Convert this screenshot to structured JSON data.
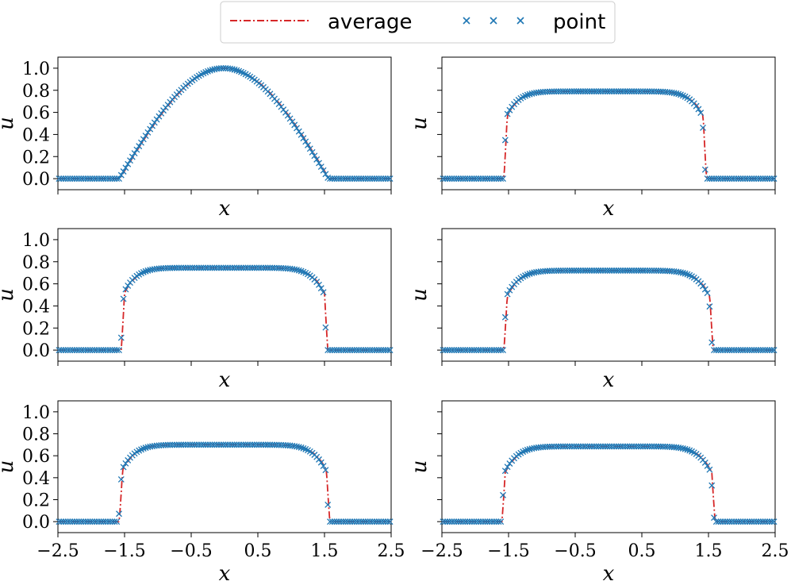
{
  "legend": {
    "items": [
      {
        "label": "average",
        "color": "#d62728",
        "style": "dash-dot"
      },
      {
        "label": "point",
        "color": "#1f77b4",
        "style": "x-marker"
      }
    ]
  },
  "chart_data": [
    {
      "type": "line",
      "xlabel": "x",
      "ylabel": "u",
      "xlim": [
        -2.5,
        2.5
      ],
      "ylim": [
        -0.1,
        1.1
      ],
      "yticks": [
        "0.0",
        "0.2",
        "0.4",
        "0.6",
        "0.8",
        "1.0"
      ],
      "profile": {
        "kind": "cosine",
        "peak": 1.0,
        "left_edge": -1.57,
        "right_edge": 1.57
      },
      "series": [
        {
          "name": "average"
        },
        {
          "name": "point"
        }
      ]
    },
    {
      "type": "line",
      "xlabel": "x",
      "ylabel": "u",
      "xlim": [
        -2.5,
        2.5
      ],
      "ylim": [
        -0.1,
        1.1
      ],
      "profile": {
        "kind": "plateau",
        "peak": 0.79,
        "left_edge": -1.57,
        "right_edge": 1.47,
        "edge_value": 0.5
      },
      "series": [
        {
          "name": "average"
        },
        {
          "name": "point"
        }
      ]
    },
    {
      "type": "line",
      "xlabel": "x",
      "ylabel": "u",
      "xlim": [
        -2.5,
        2.5
      ],
      "ylim": [
        -0.1,
        1.1
      ],
      "yticks": [
        "0.0",
        "0.2",
        "0.4",
        "0.6",
        "0.8",
        "1.0"
      ],
      "profile": {
        "kind": "plateau",
        "peak": 0.745,
        "left_edge": -1.55,
        "right_edge": 1.55,
        "edge_value": 0.45
      },
      "series": [
        {
          "name": "average"
        },
        {
          "name": "point"
        }
      ]
    },
    {
      "type": "line",
      "xlabel": "x",
      "ylabel": "u",
      "xlim": [
        -2.5,
        2.5
      ],
      "ylim": [
        -0.1,
        1.1
      ],
      "profile": {
        "kind": "plateau",
        "peak": 0.72,
        "left_edge": -1.57,
        "right_edge": 1.57,
        "edge_value": 0.42
      },
      "series": [
        {
          "name": "average"
        },
        {
          "name": "point"
        }
      ]
    },
    {
      "type": "line",
      "xlabel": "x",
      "ylabel": "u",
      "xlim": [
        -2.5,
        2.5
      ],
      "ylim": [
        -0.1,
        1.1
      ],
      "yticks": [
        "0.0",
        "0.2",
        "0.4",
        "0.6",
        "0.8",
        "1.0"
      ],
      "xticks": [
        "−2.5",
        "−1.5",
        "−0.5",
        "0.5",
        "1.5",
        "2.5"
      ],
      "profile": {
        "kind": "plateau",
        "peak": 0.7,
        "left_edge": -1.58,
        "right_edge": 1.58,
        "edge_value": 0.4
      },
      "series": [
        {
          "name": "average"
        },
        {
          "name": "point"
        }
      ]
    },
    {
      "type": "line",
      "xlabel": "x",
      "ylabel": "u",
      "xlim": [
        -2.5,
        2.5
      ],
      "ylim": [
        -0.1,
        1.1
      ],
      "xticks": [
        "−2.5",
        "−1.5",
        "−0.5",
        "0.5",
        "1.5",
        "2.5"
      ],
      "profile": {
        "kind": "plateau",
        "peak": 0.685,
        "left_edge": -1.6,
        "right_edge": 1.6,
        "edge_value": 0.38
      },
      "series": [
        {
          "name": "average"
        },
        {
          "name": "point"
        }
      ]
    }
  ]
}
